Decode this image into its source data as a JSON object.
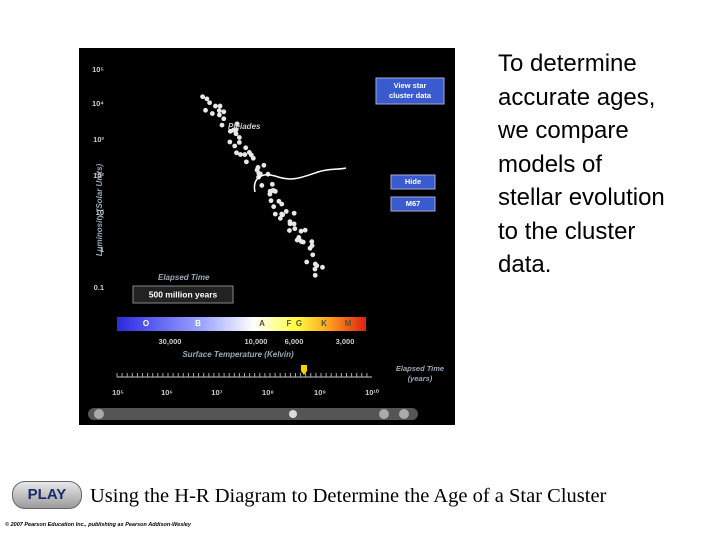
{
  "slide": {
    "side_text": [
      "To determine",
      "accurate ages,",
      "we compare",
      "models of",
      "stellar evolution",
      "to the cluster",
      "data."
    ],
    "caption": "Using the H-R Diagram to Determine the Age of a Star Cluster",
    "play_button": "PLAY",
    "copyright": "© 2007 Pearson Education Inc., publishing as Pearson Addison-Wesley"
  },
  "simulation": {
    "y_axis_label": "Luminosity (Solar Units)",
    "luminosity_labels": [
      "10⁵",
      "10⁴",
      "10³",
      "10²",
      "10",
      "1",
      "0.1"
    ],
    "cluster_label": "Pleiades",
    "buttons": {
      "view": "View star cluster data",
      "hide": "Hide",
      "m67": "M67"
    },
    "elapsed_label": "Elapsed Time",
    "elapsed_value": "500 million years",
    "spectral_classes": [
      "O",
      "B",
      "A",
      "F",
      "G",
      "K",
      "M"
    ],
    "temperature_labels": [
      "30,000",
      "10,000",
      "6,000",
      "3,000"
    ],
    "x_axis_label": "Surface Temperature (Kelvin)",
    "time_axis_title": "Elapsed Time (years)",
    "time_labels": [
      "10⁵",
      "10⁶",
      "10⁷",
      "10⁸",
      "10⁹",
      "10¹⁰"
    ]
  }
}
